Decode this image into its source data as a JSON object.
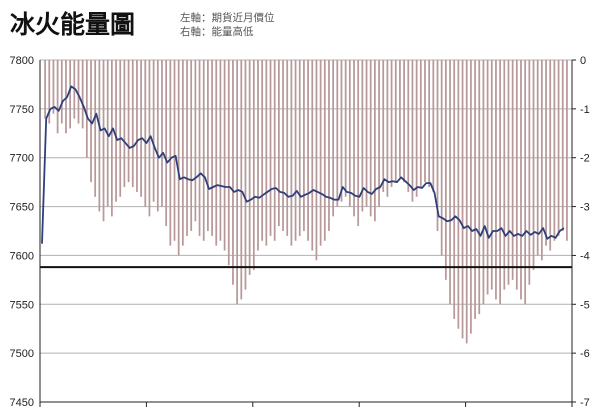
{
  "chart_data": {
    "type": "line+bar",
    "title": "冰火能量圖",
    "subtitle_lines": [
      "左軸：期貨近月價位",
      "右軸：能量高低"
    ],
    "left_axis": {
      "ylim": [
        7450,
        7800
      ],
      "ticks": [
        "7800",
        "7750",
        "7700",
        "7650",
        "7600",
        "7550",
        "7500",
        "7450"
      ]
    },
    "right_axis": {
      "ylim": [
        -7,
        0
      ],
      "ticks": [
        "0",
        "-1",
        "-2",
        "-3",
        "-4",
        "-5",
        "-6",
        "-7"
      ]
    },
    "grid": true,
    "reference_level": 7588,
    "series": [
      {
        "kind": "line",
        "axis": "left",
        "color": "#2e3f7a",
        "values": [
          7612,
          7740,
          7750,
          7752,
          7748,
          7758,
          7762,
          7773,
          7770,
          7762,
          7752,
          7740,
          7735,
          7745,
          7728,
          7730,
          7722,
          7730,
          7718,
          7720,
          7715,
          7710,
          7712,
          7718,
          7720,
          7715,
          7722,
          7710,
          7700,
          7705,
          7695,
          7700,
          7702,
          7678,
          7680,
          7678,
          7677,
          7680,
          7684,
          7680,
          7668,
          7670,
          7672,
          7671,
          7670,
          7670,
          7665,
          7667,
          7665,
          7655,
          7657,
          7660,
          7659,
          7662,
          7665,
          7668,
          7669,
          7665,
          7664,
          7660,
          7661,
          7666,
          7660,
          7662,
          7664,
          7667,
          7665,
          7663,
          7660,
          7659,
          7657,
          7657,
          7670,
          7665,
          7664,
          7661,
          7660,
          7669,
          7665,
          7663,
          7668,
          7670,
          7678,
          7675,
          7676,
          7675,
          7680,
          7676,
          7672,
          7667,
          7670,
          7669,
          7674,
          7674,
          7664,
          7640,
          7638,
          7635,
          7636,
          7640,
          7636,
          7628,
          7630,
          7625,
          7627,
          7620,
          7630,
          7618,
          7625,
          7625,
          7628,
          7620,
          7625,
          7620,
          7622,
          7620,
          7625,
          7621,
          7624,
          7622,
          7628,
          7617,
          7620,
          7618,
          7625,
          7628
        ]
      },
      {
        "kind": "bar",
        "axis": "right",
        "color": "#b89999",
        "values": [
          -1.2,
          -1.3,
          -1.1,
          -1.5,
          -1.3,
          -1.5,
          -1.4,
          -1.2,
          -1.3,
          -1.4,
          -2.0,
          -2.5,
          -2.8,
          -3.1,
          -3.3,
          -3.0,
          -3.2,
          -2.9,
          -2.8,
          -2.6,
          -2.5,
          -2.6,
          -2.7,
          -2.8,
          -3.0,
          -3.2,
          -2.9,
          -3.1,
          -3.0,
          -3.4,
          -3.8,
          -3.7,
          -4.0,
          -3.8,
          -3.6,
          -3.5,
          -3.3,
          -3.6,
          -3.7,
          -3.5,
          -3.6,
          -3.8,
          -3.7,
          -3.9,
          -4.2,
          -4.6,
          -5.0,
          -4.9,
          -4.7,
          -4.4,
          -4.3,
          -3.9,
          -3.7,
          -3.8,
          -3.6,
          -3.7,
          -3.4,
          -3.5,
          -3.6,
          -3.8,
          -3.7,
          -3.6,
          -3.5,
          -3.7,
          -3.9,
          -4.1,
          -3.8,
          -3.7,
          -3.5,
          -3.2,
          -3.0,
          -2.9,
          -2.8,
          -3.0,
          -3.2,
          -3.4,
          -3.1,
          -3.0,
          -3.2,
          -3.3,
          -3.0,
          -2.7,
          -2.8,
          -2.6,
          -2.5,
          -2.4,
          -2.5,
          -2.7,
          -2.9,
          -2.8,
          -2.6,
          -2.5,
          -2.6,
          -2.7,
          -3.5,
          -4.0,
          -4.5,
          -5.0,
          -5.3,
          -5.5,
          -5.7,
          -5.8,
          -5.6,
          -5.3,
          -5.2,
          -5.0,
          -4.8,
          -4.7,
          -4.9,
          -5.0,
          -4.7,
          -4.6,
          -4.5,
          -4.7,
          -4.9,
          -5.0,
          -4.6,
          -4.3,
          -4.0,
          -4.1,
          -3.8,
          -3.9,
          -3.7,
          -3.6,
          -3.5,
          -3.7
        ]
      }
    ]
  }
}
